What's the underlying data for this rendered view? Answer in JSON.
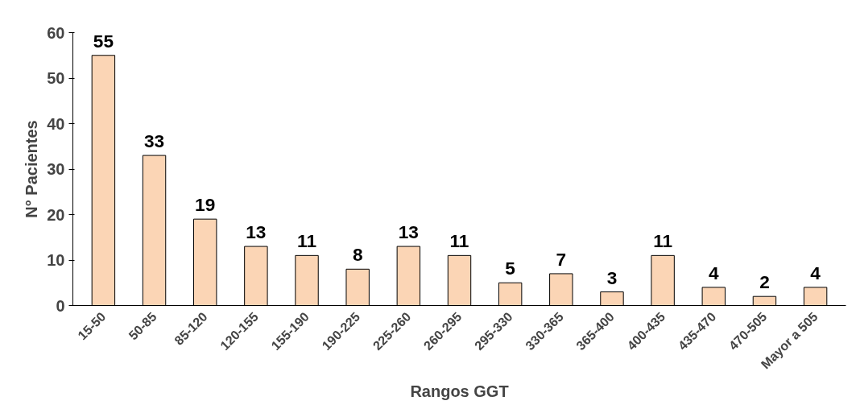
{
  "chart_data": {
    "type": "bar",
    "xlabel": "Rangos GGT",
    "ylabel": "N° Pacientes",
    "categories": [
      "15-50",
      "50-85",
      "85-120",
      "120-155",
      "155-190",
      "190-225",
      "225-260",
      "260-295",
      "295-330",
      "330-365",
      "365-400",
      "400-435",
      "435-470",
      "470-505",
      "Mayor a 505"
    ],
    "values": [
      55,
      33,
      19,
      13,
      11,
      8,
      13,
      11,
      5,
      7,
      3,
      11,
      4,
      2,
      4
    ],
    "color": "#fbd5b5",
    "ylim": [
      0,
      60
    ],
    "yticks": [
      0,
      10,
      20,
      30,
      40,
      50,
      60
    ],
    "grid": false,
    "data_labels": true
  }
}
